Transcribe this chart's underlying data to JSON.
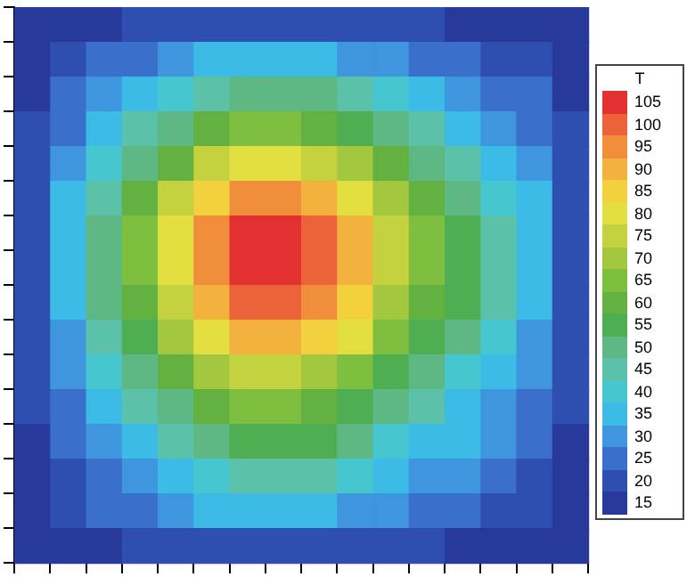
{
  "chart_data": {
    "type": "heatmap",
    "clabel": "T",
    "tick_labels": false,
    "categories": [
      null,
      null,
      null,
      null,
      null,
      null,
      null,
      null,
      null,
      null,
      null,
      null,
      null,
      null,
      null,
      null
    ],
    "y_categories": [
      null,
      null,
      null,
      null,
      null,
      null,
      null,
      null,
      null,
      null,
      null,
      null,
      null,
      null,
      null,
      null
    ],
    "clim": [
      12.5,
      107.5
    ],
    "cticks": [
      15,
      20,
      25,
      30,
      35,
      40,
      45,
      50,
      55,
      60,
      65,
      70,
      75,
      80,
      85,
      90,
      95,
      100,
      105
    ],
    "cells": [
      [
        15,
        16,
        17,
        18,
        19,
        19,
        20,
        20,
        20,
        19,
        18,
        18,
        17,
        17,
        16,
        15
      ],
      [
        16,
        19,
        23,
        26,
        29,
        33,
        35,
        35,
        34,
        32,
        28,
        26,
        24,
        22,
        19,
        16
      ],
      [
        17,
        23,
        29,
        34,
        40,
        46,
        50,
        50,
        48,
        44,
        38,
        34,
        31,
        27,
        23,
        17
      ],
      [
        18,
        26,
        34,
        43,
        51,
        59,
        65,
        65,
        62,
        57,
        48,
        43,
        37,
        32,
        26,
        18
      ],
      [
        19,
        29,
        40,
        51,
        62,
        73,
        80,
        80,
        76,
        69,
        58,
        51,
        44,
        37,
        29,
        19
      ],
      [
        19,
        33,
        46,
        59,
        73,
        86,
        95,
        95,
        91,
        82,
        68,
        59,
        51,
        42,
        33,
        19
      ],
      [
        20,
        35,
        50,
        65,
        80,
        95,
        105,
        105,
        100,
        90,
        75,
        65,
        55,
        45,
        35,
        20
      ],
      [
        20,
        35,
        50,
        65,
        80,
        95,
        105,
        105,
        100,
        90,
        75,
        65,
        55,
        45,
        35,
        20
      ],
      [
        20,
        34,
        48,
        62,
        76,
        91,
        100,
        100,
        95,
        86,
        72,
        62,
        53,
        43,
        34,
        20
      ],
      [
        19,
        32,
        44,
        57,
        69,
        82,
        90,
        90,
        86,
        78,
        65,
        57,
        48,
        40,
        32,
        19
      ],
      [
        18,
        28,
        38,
        48,
        58,
        68,
        75,
        75,
        72,
        65,
        55,
        48,
        42,
        35,
        28,
        18
      ],
      [
        18,
        26,
        34,
        43,
        51,
        59,
        65,
        65,
        62,
        57,
        48,
        43,
        37,
        32,
        26,
        18
      ],
      [
        17,
        24,
        31,
        37,
        44,
        51,
        55,
        55,
        53,
        48,
        42,
        37,
        33,
        28,
        24,
        17
      ],
      [
        17,
        22,
        27,
        32,
        37,
        42,
        45,
        45,
        43,
        40,
        35,
        32,
        28,
        25,
        22,
        17
      ],
      [
        16,
        19,
        23,
        26,
        29,
        33,
        35,
        35,
        34,
        32,
        28,
        26,
        24,
        22,
        19,
        16
      ],
      [
        15,
        16,
        17,
        18,
        19,
        19,
        20,
        20,
        20,
        19,
        18,
        18,
        17,
        17,
        16,
        15
      ]
    ]
  }
}
